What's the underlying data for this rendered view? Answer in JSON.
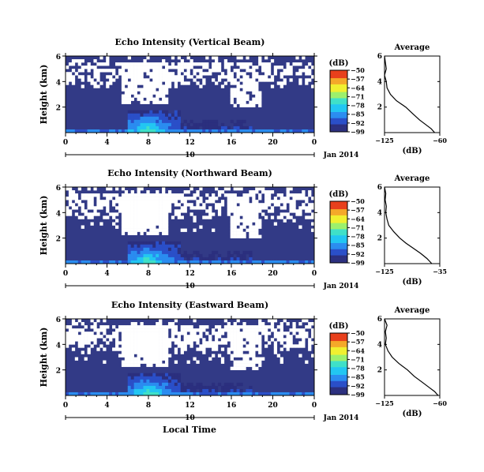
{
  "figure": {
    "xlabel": "Local Time",
    "date_label": "Jan 2014"
  },
  "colors": {
    "background_bin": "#323a86",
    "colormap": [
      "#2b2f7e",
      "#2a4fc8",
      "#2a8cf0",
      "#22c6f2",
      "#3fe0c8",
      "#9cf06c",
      "#f0f030",
      "#f4a828",
      "#e8401c"
    ]
  },
  "chart_data": [
    {
      "type": "heatmap",
      "panel": "vertical",
      "title": "Echo Intensity (Vertical Beam)",
      "ylabel": "Height (km)",
      "x_ticks": [
        "0",
        "4",
        "8",
        "12",
        "16",
        "20",
        "0"
      ],
      "x_range": [
        0,
        24
      ],
      "y_ticks": [
        "6",
        "4",
        "2"
      ],
      "y_range": [
        0,
        6
      ],
      "date_marker": "10",
      "colorbar": {
        "unit": "(dB)",
        "ticks": [
          "-50",
          "-57",
          "-64",
          "-71",
          "-78",
          "-85",
          "-92",
          "-99"
        ],
        "range": [
          -99,
          -50
        ]
      },
      "average": {
        "title": "Average",
        "xlabel": "(dB)",
        "x_ticks": [
          "-125",
          "-60"
        ],
        "x_range": [
          -125,
          -60
        ],
        "y_ticks": [
          "6",
          "4",
          "2"
        ],
        "profile": [
          {
            "h": 0.0,
            "db": -66
          },
          {
            "h": 0.3,
            "db": -70
          },
          {
            "h": 0.6,
            "db": -76
          },
          {
            "h": 1.0,
            "db": -84
          },
          {
            "h": 1.5,
            "db": -92
          },
          {
            "h": 2.0,
            "db": -100
          },
          {
            "h": 2.5,
            "db": -111
          },
          {
            "h": 3.0,
            "db": -118
          },
          {
            "h": 3.5,
            "db": -122
          },
          {
            "h": 4.0,
            "db": -123
          },
          {
            "h": 4.5,
            "db": -125
          },
          {
            "h": 5.0,
            "db": -123
          },
          {
            "h": 5.5,
            "db": -124
          },
          {
            "h": 6.0,
            "db": -125
          }
        ]
      }
    },
    {
      "type": "heatmap",
      "panel": "northward",
      "title": "Echo Intensity (Northward Beam)",
      "ylabel": "Height (km)",
      "x_ticks": [
        "0",
        "4",
        "8",
        "12",
        "16",
        "20",
        "0"
      ],
      "x_range": [
        0,
        24
      ],
      "y_ticks": [
        "6",
        "4",
        "2"
      ],
      "y_range": [
        0,
        6
      ],
      "date_marker": "10",
      "colorbar": {
        "unit": "(dB)",
        "ticks": [
          "-50",
          "-57",
          "-64",
          "-71",
          "-78",
          "-85",
          "-92",
          "-99"
        ],
        "range": [
          -99,
          -50
        ]
      },
      "average": {
        "title": "Average",
        "xlabel": "(dB)",
        "x_ticks": [
          "-125",
          "-35"
        ],
        "x_range": [
          -125,
          -35
        ],
        "y_ticks": [
          "6",
          "4",
          "2"
        ],
        "profile": [
          {
            "h": 0.0,
            "db": -48
          },
          {
            "h": 0.4,
            "db": -56
          },
          {
            "h": 0.8,
            "db": -66
          },
          {
            "h": 1.2,
            "db": -78
          },
          {
            "h": 1.6,
            "db": -90
          },
          {
            "h": 2.0,
            "db": -100
          },
          {
            "h": 2.5,
            "db": -110
          },
          {
            "h": 3.0,
            "db": -118
          },
          {
            "h": 3.5,
            "db": -121
          },
          {
            "h": 4.0,
            "db": -123
          },
          {
            "h": 4.5,
            "db": -122
          },
          {
            "h": 5.0,
            "db": -124
          },
          {
            "h": 5.5,
            "db": -123
          },
          {
            "h": 6.0,
            "db": -125
          }
        ]
      }
    },
    {
      "type": "heatmap",
      "panel": "eastward",
      "title": "Echo Intensity (Eastward Beam)",
      "ylabel": "Height (km)",
      "x_ticks": [
        "0",
        "4",
        "8",
        "12",
        "16",
        "20",
        "0"
      ],
      "x_range": [
        0,
        24
      ],
      "y_ticks": [
        "6",
        "4",
        "2"
      ],
      "y_range": [
        0,
        6
      ],
      "date_marker": "10",
      "colorbar": {
        "unit": "(dB)",
        "ticks": [
          "-50",
          "-57",
          "-64",
          "-71",
          "-78",
          "-85",
          "-92",
          "-99"
        ],
        "range": [
          -99,
          -50
        ]
      },
      "average": {
        "title": "Average",
        "xlabel": "(dB)",
        "x_ticks": [
          "-125",
          "-60"
        ],
        "x_range": [
          -125,
          -60
        ],
        "y_ticks": [
          "6",
          "4",
          "2"
        ],
        "profile": [
          {
            "h": 0.0,
            "db": -62
          },
          {
            "h": 0.3,
            "db": -66
          },
          {
            "h": 0.6,
            "db": -72
          },
          {
            "h": 1.0,
            "db": -80
          },
          {
            "h": 1.5,
            "db": -90
          },
          {
            "h": 2.0,
            "db": -98
          },
          {
            "h": 2.5,
            "db": -108
          },
          {
            "h": 3.0,
            "db": -116
          },
          {
            "h": 3.5,
            "db": -121
          },
          {
            "h": 4.0,
            "db": -124
          },
          {
            "h": 4.5,
            "db": -123
          },
          {
            "h": 5.0,
            "db": -124
          },
          {
            "h": 5.5,
            "db": -122
          },
          {
            "h": 6.0,
            "db": -125
          }
        ]
      }
    }
  ]
}
